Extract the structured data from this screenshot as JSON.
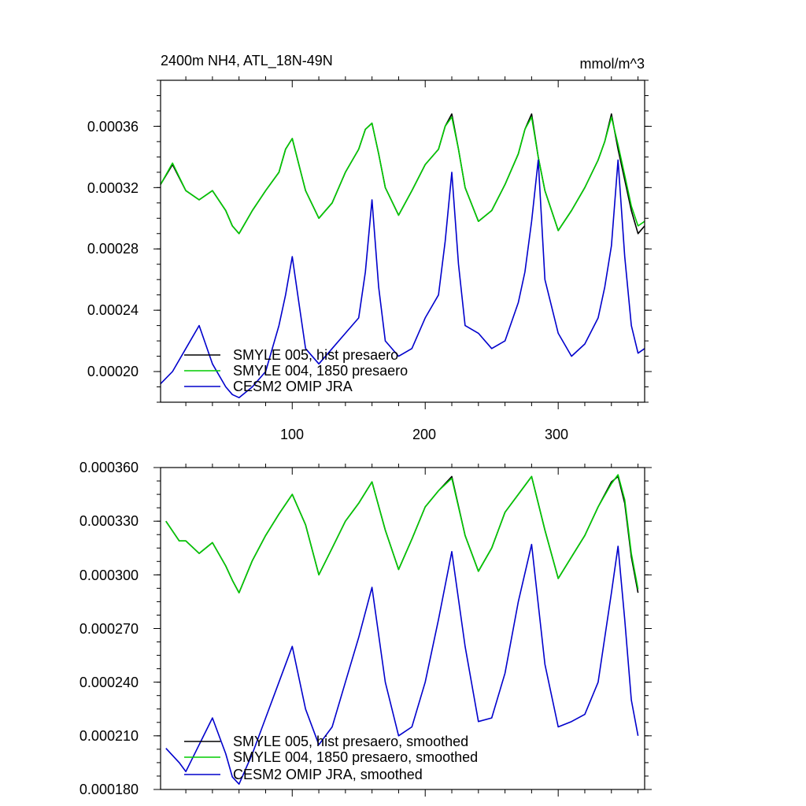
{
  "chart_data": [
    {
      "type": "line",
      "title": "2400m NH4, ATL_18N-49N",
      "units_label": "mmol/m^3",
      "xlim": [
        1,
        365
      ],
      "ylim": [
        0.00018,
        0.00039
      ],
      "xticks": [
        100,
        200,
        300
      ],
      "xticklabels": [
        "100",
        "200",
        "300"
      ],
      "yticks": [
        0.0002,
        0.00024,
        0.00028,
        0.00032,
        0.00036
      ],
      "yticklabels": [
        "0.00020",
        "0.00024",
        "0.00028",
        "0.00032",
        "0.00036"
      ],
      "grid": false,
      "legend_position": "bottom-left",
      "x": [
        1,
        10,
        20,
        30,
        40,
        50,
        55,
        60,
        70,
        80,
        90,
        95,
        100,
        105,
        110,
        120,
        130,
        140,
        150,
        155,
        160,
        165,
        170,
        180,
        190,
        200,
        210,
        215,
        220,
        225,
        230,
        240,
        250,
        260,
        270,
        275,
        280,
        285,
        290,
        300,
        310,
        320,
        330,
        335,
        340,
        345,
        350,
        355,
        360,
        365
      ],
      "series": [
        {
          "name": "SMYLE 005, hist presaero",
          "color": "#000000",
          "values": [
            0.000322,
            0.000335,
            0.000318,
            0.000312,
            0.000318,
            0.000305,
            0.000295,
            0.00029,
            0.000305,
            0.000318,
            0.00033,
            0.000345,
            0.000352,
            0.000335,
            0.000318,
            0.0003,
            0.00031,
            0.00033,
            0.000345,
            0.000358,
            0.000362,
            0.000342,
            0.00032,
            0.000302,
            0.000318,
            0.000335,
            0.000345,
            0.00036,
            0.000368,
            0.000345,
            0.00032,
            0.000298,
            0.000305,
            0.000322,
            0.000342,
            0.000358,
            0.000368,
            0.00034,
            0.000318,
            0.000292,
            0.000305,
            0.00032,
            0.000338,
            0.00035,
            0.000368,
            0.000345,
            0.000325,
            0.000305,
            0.00029,
            0.000295
          ]
        },
        {
          "name": "SMYLE 004, 1850 presaero",
          "color": "#00cc00",
          "values": [
            0.000322,
            0.000336,
            0.000318,
            0.000312,
            0.000318,
            0.000305,
            0.000295,
            0.00029,
            0.000305,
            0.000318,
            0.00033,
            0.000345,
            0.000352,
            0.000335,
            0.000318,
            0.0003,
            0.00031,
            0.00033,
            0.000345,
            0.000358,
            0.000362,
            0.000342,
            0.00032,
            0.000302,
            0.000318,
            0.000335,
            0.000345,
            0.00036,
            0.000366,
            0.000345,
            0.00032,
            0.000298,
            0.000305,
            0.000322,
            0.000342,
            0.000358,
            0.000366,
            0.00034,
            0.000318,
            0.000292,
            0.000305,
            0.00032,
            0.000338,
            0.00035,
            0.000366,
            0.000348,
            0.000328,
            0.000308,
            0.000295,
            0.000298
          ]
        },
        {
          "name": "CESM2 OMIP JRA",
          "color": "#0000cc",
          "values": [
            0.000192,
            0.0002,
            0.000215,
            0.00023,
            0.000205,
            0.00019,
            0.000185,
            0.000183,
            0.00019,
            0.0002,
            0.00023,
            0.00025,
            0.000275,
            0.000245,
            0.000215,
            0.000205,
            0.000215,
            0.000225,
            0.000235,
            0.000265,
            0.000312,
            0.000255,
            0.00022,
            0.00021,
            0.000215,
            0.000235,
            0.00025,
            0.000285,
            0.00033,
            0.00027,
            0.00023,
            0.000225,
            0.000215,
            0.00022,
            0.000245,
            0.000265,
            0.000298,
            0.000338,
            0.00026,
            0.000225,
            0.00021,
            0.000218,
            0.000235,
            0.000255,
            0.000282,
            0.000338,
            0.000275,
            0.00023,
            0.000212,
            0.000215
          ]
        }
      ]
    },
    {
      "type": "line",
      "title": "",
      "xlim": [
        1,
        365
      ],
      "ylim": [
        0.00018,
        0.00036
      ],
      "xticks": [
        100,
        200,
        300
      ],
      "yticks": [
        0.00018,
        0.00021,
        0.00024,
        0.00027,
        0.0003,
        0.00033,
        0.00036
      ],
      "yticklabels": [
        "0.000180",
        "0.000210",
        "0.000240",
        "0.000270",
        "0.000300",
        "0.000330",
        "0.000360"
      ],
      "grid": false,
      "legend_position": "bottom-left",
      "x": [
        5,
        15,
        20,
        30,
        40,
        50,
        55,
        60,
        70,
        80,
        90,
        100,
        110,
        120,
        130,
        140,
        150,
        160,
        170,
        180,
        190,
        200,
        210,
        220,
        230,
        240,
        250,
        260,
        270,
        280,
        290,
        300,
        310,
        320,
        330,
        340,
        345,
        350,
        355,
        360
      ],
      "series": [
        {
          "name": "SMYLE 005, hist presaero, smoothed",
          "color": "#000000",
          "values": [
            0.00033,
            0.000319,
            0.000319,
            0.000312,
            0.000318,
            0.000305,
            0.000297,
            0.00029,
            0.000308,
            0.000322,
            0.000334,
            0.000345,
            0.000328,
            0.0003,
            0.000315,
            0.00033,
            0.00034,
            0.000352,
            0.000325,
            0.000303,
            0.00032,
            0.000338,
            0.000347,
            0.000355,
            0.000322,
            0.000302,
            0.000315,
            0.000335,
            0.000345,
            0.000355,
            0.000325,
            0.000298,
            0.00031,
            0.000322,
            0.000338,
            0.000352,
            0.000355,
            0.00034,
            0.00031,
            0.00029
          ]
        },
        {
          "name": "SMYLE 004, 1850 presaero, smoothed",
          "color": "#00cc00",
          "values": [
            0.00033,
            0.000319,
            0.000319,
            0.000312,
            0.000318,
            0.000305,
            0.000297,
            0.00029,
            0.000308,
            0.000322,
            0.000334,
            0.000345,
            0.000328,
            0.0003,
            0.000315,
            0.00033,
            0.00034,
            0.000352,
            0.000325,
            0.000303,
            0.00032,
            0.000338,
            0.000347,
            0.000354,
            0.000322,
            0.000302,
            0.000315,
            0.000335,
            0.000345,
            0.000355,
            0.000325,
            0.000298,
            0.00031,
            0.000322,
            0.000338,
            0.000351,
            0.000356,
            0.000342,
            0.000312,
            0.000292
          ]
        },
        {
          "name": "CESM2 OMIP JRA, smoothed",
          "color": "#0000cc",
          "values": [
            0.000203,
            0.000195,
            0.00019,
            0.000205,
            0.00022,
            0.0002,
            0.000187,
            0.000183,
            0.0002,
            0.00022,
            0.00024,
            0.00026,
            0.000225,
            0.000205,
            0.000215,
            0.00024,
            0.000265,
            0.000293,
            0.00024,
            0.00021,
            0.000215,
            0.00024,
            0.000275,
            0.000313,
            0.00026,
            0.000218,
            0.00022,
            0.000245,
            0.000285,
            0.000317,
            0.00025,
            0.000215,
            0.000218,
            0.000222,
            0.00024,
            0.00029,
            0.000316,
            0.000275,
            0.00023,
            0.00021
          ]
        }
      ]
    }
  ]
}
